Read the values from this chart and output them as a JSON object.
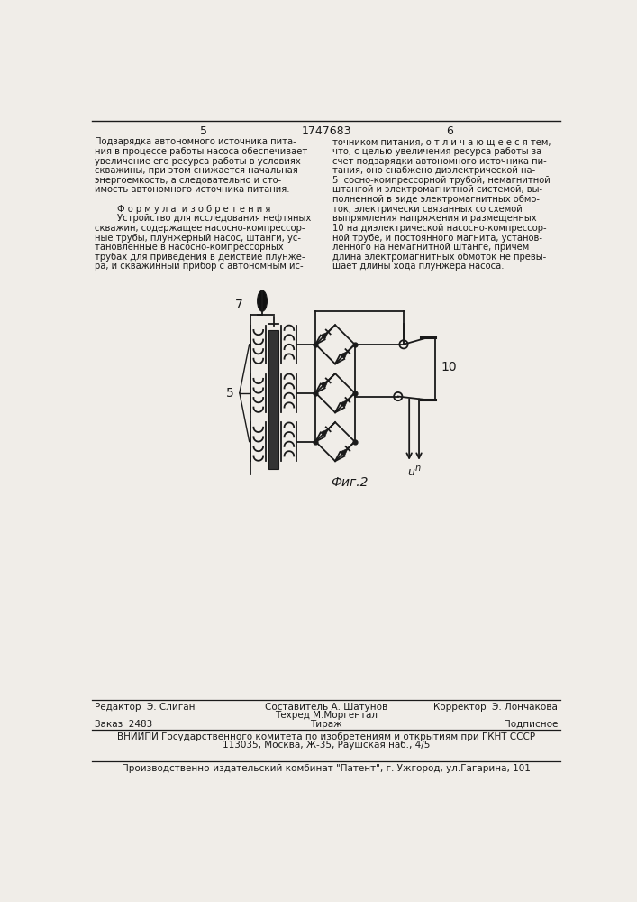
{
  "page_bg": "#f0ede8",
  "header_page_left": "5",
  "header_title": "1747683",
  "header_page_right": "6",
  "text_left_col": [
    "Подзарядка автономного источника пита-",
    "ния в процессе работы насоса обеспечивает",
    "увеличение его ресурса работы в условиях",
    "скважины, при этом снижается начальная",
    "энергоемкость, а следовательно и сто-",
    "имость автономного источника питания.",
    "",
    "        Ф о р м у л а  и з о б р е т е н и я",
    "        Устройство для исследования нефтяных",
    "скважин, содержащее насосно-компрессор-",
    "ные трубы, плунжерный насос, штанги, ус-",
    "тановленные в насосно-компрессорных",
    "трубах для приведения в действие плунже-",
    "ра, и скважинный прибор с автономным ис-"
  ],
  "text_right_col": [
    "точником питания, о т л и ч а ю щ е е с я тем,",
    "что, с целью увеличения ресурса работы за",
    "счет подзарядки автономного источника пи-",
    "тания, оно снабжено диэлектрической на-",
    "5  сосно-компрессорной трубой, немагнитной",
    "штангой и электромагнитной системой, вы-",
    "полненной в виде электромагнитных обмо-",
    "ток, электрически связанных со схемой",
    "выпрямления напряжения и размещенных",
    "10 на диэлектрической насосно-компрессор-",
    "ной трубе, и постоянного магнита, установ-",
    "ленного на немагнитной штанге, причем",
    "длина электромагнитных обмоток не превы-",
    "шает длины хода плунжера насоса."
  ],
  "fig_label": "Фиг.2",
  "label_5": "5",
  "label_7": "7",
  "label_10": "10",
  "label_un": "u",
  "label_un_sub": "n",
  "footer_editor": "Редактор  Э. Слиган",
  "footer_compiler": "Составитель А. Шатунов",
  "footer_corrector": "Корректор  Э. Лончакова",
  "footer_tech": "Техред М.Моргентал",
  "footer_order": "Заказ  2483",
  "footer_tirazh": "Тираж",
  "footer_podpisnoe": "Подписное",
  "footer_vniip": "ВНИИПИ Государственного комитета по изобретениям и открытиям при ГКНТ СССР",
  "footer_address": "113035, Москва, Ж-35, Раушская наб., 4/5",
  "footer_patent": "Производственно-издательский комбинат \"Патент\", г. Ужгород, ул.Гагарина, 101",
  "line_color": "#1a1a1a",
  "text_color": "#1a1a1a"
}
